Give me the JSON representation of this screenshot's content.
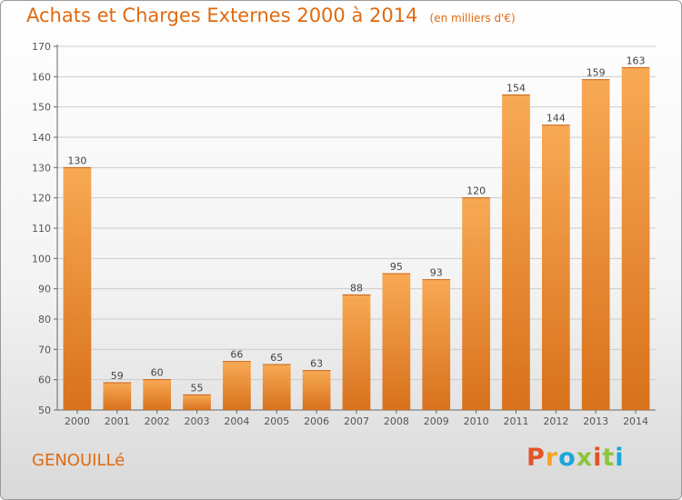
{
  "header": {
    "title": "Achats et Charges Externes 2000 à 2014",
    "unit": "(en milliers d'€)"
  },
  "footer": {
    "commune": "GENOUILLé",
    "brand": "Proxiti",
    "brand_colors": [
      "#e3542a",
      "#f4a622",
      "#1aa7d9",
      "#8cc63f",
      "#e3542a",
      "#8cc63f",
      "#1aa7d9"
    ]
  },
  "colors": {
    "accent": "#e06a10",
    "bar_light": "#f8a954",
    "bar_dark": "#d8711c",
    "grid": "#cccccc"
  },
  "chart_data": {
    "type": "bar",
    "title": "Achats et Charges Externes 2000 à 2014",
    "subtitle": "(en milliers d'€)",
    "categories": [
      "2000",
      "2001",
      "2002",
      "2003",
      "2004",
      "2005",
      "2006",
      "2007",
      "2008",
      "2009",
      "2010",
      "2011",
      "2012",
      "2013",
      "2014"
    ],
    "values": [
      130,
      59,
      60,
      55,
      66,
      65,
      63,
      88,
      95,
      93,
      120,
      154,
      144,
      159,
      163
    ],
    "ylim": [
      50,
      170
    ],
    "yticks": [
      50,
      60,
      70,
      80,
      90,
      100,
      110,
      120,
      130,
      140,
      150,
      160,
      170
    ],
    "grid": true,
    "data_labels": true
  }
}
